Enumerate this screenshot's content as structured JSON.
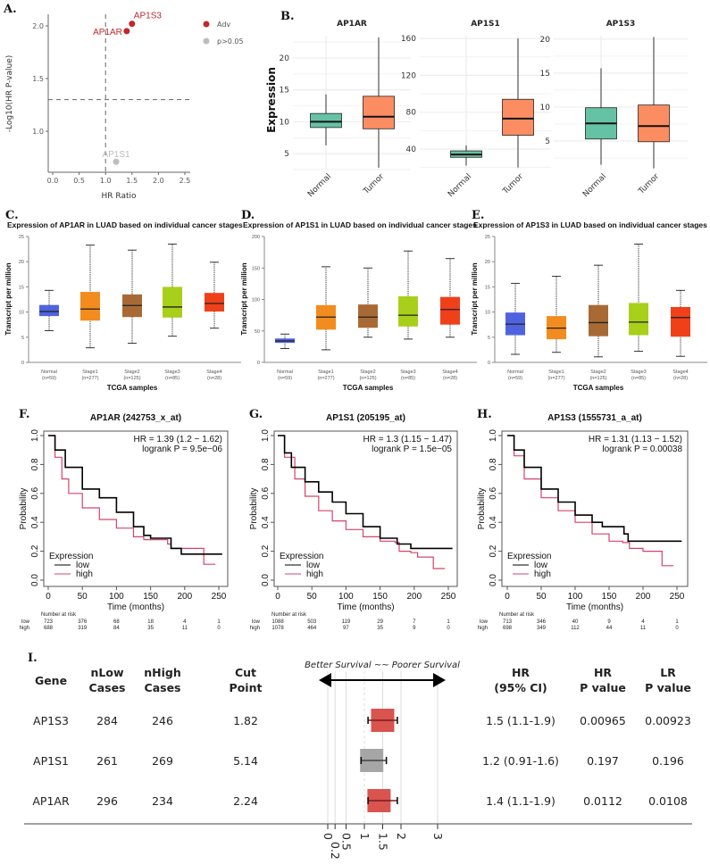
{
  "chart_data": [
    {
      "panel": "A.",
      "type": "scatter",
      "xlabel": "HR Ratio",
      "ylabel": "-Log10(HR P-value)",
      "x_ticks": [
        "0.0",
        "0.5",
        "1.0",
        "1.5",
        "2.0",
        "2.5"
      ],
      "y_ticks": [
        "1.0",
        "1.5",
        "2.0"
      ],
      "xlim": [
        -0.1,
        2.6
      ],
      "ylim": [
        0.6,
        2.1
      ],
      "thresholds": {
        "x": 1.0,
        "y": 1.3
      },
      "legend_position": "right",
      "legend": [
        {
          "label": "Adv",
          "color": "#c0282a"
        },
        {
          "label": "p>0.05",
          "color": "#bdbdbd"
        }
      ],
      "points": [
        {
          "gene": "AP1S3",
          "x": 1.5,
          "y": 2.02,
          "group": 0
        },
        {
          "gene": "AP1AR",
          "x": 1.4,
          "y": 1.95,
          "group": 0
        },
        {
          "gene": "AP1S1",
          "x": 1.2,
          "y": 0.71,
          "group": 1
        }
      ]
    },
    {
      "panel": "B.",
      "type": "box",
      "title": "AP1AR",
      "ylabel": "Expression",
      "categories": [
        "Normal",
        "Tumor"
      ],
      "colors": [
        "#66c2a5",
        "#fc8d62"
      ],
      "ylim": [
        2.5,
        23.5
      ],
      "y_ticks": [
        "5",
        "10",
        "15",
        "20"
      ],
      "boxes": [
        [
          6.3,
          9.1,
          10,
          11.3,
          14.3
        ],
        [
          2.8,
          8.9,
          10.8,
          14,
          23.2
        ]
      ]
    },
    {
      "type": "box",
      "title": "AP1S1",
      "categories": [
        "Normal",
        "Tumor"
      ],
      "colors": [
        "#66c2a5",
        "#fc8d62"
      ],
      "ylim": [
        17.7,
        163
      ],
      "y_ticks": [
        "40",
        "80",
        "120",
        "160"
      ],
      "boxes": [
        [
          22,
          31,
          34,
          38,
          44
        ],
        [
          20,
          55,
          73,
          94,
          160
        ]
      ]
    },
    {
      "type": "box",
      "title": "AP1S3",
      "categories": [
        "Normal",
        "Tumor"
      ],
      "colors": [
        "#66c2a5",
        "#fc8d62"
      ],
      "ylim": [
        0.8,
        20.5
      ],
      "y_ticks": [
        "5",
        "10",
        "15",
        "20"
      ],
      "boxes": [
        [
          1.5,
          5.3,
          7.6,
          9.9,
          15.7
        ],
        [
          1,
          4.9,
          7.2,
          10.3,
          20.3
        ]
      ]
    },
    {
      "panel": "C.",
      "type": "box",
      "title": "Expression of AP1AR in LUAD based on individual cancer stages",
      "xlabel": "TCGA samples",
      "ylabel": "Transcript per million",
      "categories": [
        "Normal",
        "Stage1",
        "Stage2",
        "Stage3",
        "Stage4"
      ],
      "n": [
        "(n=59)",
        "(n=277)",
        "(n=125)",
        "(n=85)",
        "(n=28)"
      ],
      "colors": [
        "#4f63e0",
        "#f28c1e",
        "#a86a35",
        "#a8d01a",
        "#f0401a"
      ],
      "ylim": [
        0,
        25
      ],
      "y_ticks": [
        "0",
        "5",
        "10",
        "15",
        "20",
        "25"
      ],
      "boxes": [
        [
          6.3,
          9.2,
          10.1,
          11.4,
          14.3
        ],
        [
          2.9,
          8.3,
          10.6,
          14.0,
          23.3
        ],
        [
          3.8,
          9.0,
          11.3,
          13.5,
          22.3
        ],
        [
          5.2,
          8.9,
          11.0,
          15.0,
          23.5
        ],
        [
          6.8,
          10.1,
          11.7,
          13.8,
          19.9
        ]
      ]
    },
    {
      "panel": "D.",
      "type": "box",
      "title": "Expression of AP1S1 in LUAD based on individual cancer stages",
      "xlabel": "TCGA samples",
      "ylabel": "Transcript per million",
      "categories": [
        "Normal",
        "Stage1",
        "Stage2",
        "Stage3",
        "Stage4"
      ],
      "n": [
        "(n=59)",
        "(n=277)",
        "(n=125)",
        "(n=85)",
        "(n=28)"
      ],
      "colors": [
        "#4f63e0",
        "#f28c1e",
        "#a86a35",
        "#a8d01a",
        "#f0401a"
      ],
      "ylim": [
        0,
        200
      ],
      "y_ticks": [
        "0",
        "50",
        "100",
        "150",
        "200"
      ],
      "boxes": [
        [
          22,
          31,
          34,
          38,
          45
        ],
        [
          20,
          52,
          72,
          91,
          152
        ],
        [
          40,
          55,
          72,
          92,
          150
        ],
        [
          37,
          57,
          75,
          105,
          177
        ],
        [
          40,
          60,
          84,
          104,
          165
        ]
      ]
    },
    {
      "panel": "E.",
      "type": "box",
      "title": "Expression of AP1S3 in LUAD based on individual cancer stages",
      "xlabel": "TCGA samples",
      "ylabel": "Transcript per million",
      "categories": [
        "Normal",
        "Stage1",
        "Stage2",
        "Stage3",
        "Stage4"
      ],
      "n": [
        "(n=59)",
        "(n=277)",
        "(n=125)",
        "(n=85)",
        "(n=28)"
      ],
      "colors": [
        "#4f63e0",
        "#f28c1e",
        "#a86a35",
        "#a8d01a",
        "#f0401a"
      ],
      "ylim": [
        0,
        25
      ],
      "y_ticks": [
        "0",
        "5",
        "10",
        "15",
        "20",
        "25"
      ],
      "boxes": [
        [
          1.6,
          5.4,
          7.6,
          9.9,
          15.7
        ],
        [
          2.0,
          4.6,
          6.8,
          9.2,
          17.1
        ],
        [
          1.1,
          5.2,
          7.9,
          11.4,
          19.3
        ],
        [
          2.2,
          5.4,
          8.0,
          11.8,
          23.5
        ],
        [
          1.2,
          5.1,
          8.9,
          11.0,
          14.3
        ]
      ]
    },
    {
      "panel": "F.",
      "type": "line",
      "title": "AP1AR (242753_x_at)",
      "xlabel": "Time (months)",
      "ylabel": "Probability",
      "x_ticks": [
        "0",
        "50",
        "100",
        "150",
        "200",
        "250"
      ],
      "y_ticks": [
        "0.0",
        "0.2",
        "0.4",
        "0.6",
        "0.8",
        "1.0"
      ],
      "hr_text": "HR = 1.39 (1.2 − 1.62)",
      "logrank_text": "logrank P = 9.5e−06",
      "legend_title": "Expression",
      "series": [
        {
          "name": "low",
          "color": "#000000",
          "points": [
            [
              0,
              1
            ],
            [
              10,
              0.9
            ],
            [
              25,
              0.78
            ],
            [
              50,
              0.63
            ],
            [
              75,
              0.57
            ],
            [
              100,
              0.47
            ],
            [
              125,
              0.37
            ],
            [
              140,
              0.31
            ],
            [
              150,
              0.29
            ],
            [
              172,
              0.29
            ],
            [
              180,
              0.22
            ],
            [
              195,
              0.18
            ],
            [
              255,
              0.18
            ]
          ]
        },
        {
          "name": "high",
          "color": "#d6436b",
          "points": [
            [
              0,
              1
            ],
            [
              10,
              0.85
            ],
            [
              20,
              0.7
            ],
            [
              30,
              0.6
            ],
            [
              50,
              0.5
            ],
            [
              75,
              0.42
            ],
            [
              100,
              0.36
            ],
            [
              125,
              0.3
            ],
            [
              140,
              0.28
            ],
            [
              160,
              0.28
            ],
            [
              175,
              0.25
            ],
            [
              180,
              0.22
            ],
            [
              228,
              0.22
            ],
            [
              228,
              0.11
            ],
            [
              245,
              0.11
            ]
          ]
        }
      ],
      "risk": {
        "title": "Number at risk",
        "labels": [
          "low",
          "high"
        ],
        "low": [
          "723",
          "376",
          "68",
          "18",
          "4",
          "1"
        ],
        "high": [
          "688",
          "319",
          "84",
          "35",
          "11",
          "0"
        ]
      }
    },
    {
      "panel": "G.",
      "type": "line",
      "title": "AP1S1 (205195_at)",
      "xlabel": "Time (months)",
      "ylabel": "Probability",
      "x_ticks": [
        "0",
        "50",
        "100",
        "150",
        "200",
        "250"
      ],
      "y_ticks": [
        "0.0",
        "0.2",
        "0.4",
        "0.6",
        "0.8",
        "1.0"
      ],
      "hr_text": "HR = 1.3 (1.15 − 1.47)",
      "logrank_text": "logrank P = 1.5e−05",
      "legend_title": "Expression",
      "series": [
        {
          "name": "low",
          "color": "#000000",
          "points": [
            [
              0,
              1
            ],
            [
              10,
              0.88
            ],
            [
              20,
              0.78
            ],
            [
              40,
              0.68
            ],
            [
              60,
              0.61
            ],
            [
              80,
              0.54
            ],
            [
              100,
              0.46
            ],
            [
              125,
              0.37
            ],
            [
              150,
              0.29
            ],
            [
              175,
              0.27
            ],
            [
              175,
              0.25
            ],
            [
              195,
              0.25
            ],
            [
              195,
              0.22
            ],
            [
              256,
              0.22
            ]
          ]
        },
        {
          "name": "high",
          "color": "#d6436b",
          "points": [
            [
              0,
              1
            ],
            [
              10,
              0.85
            ],
            [
              25,
              0.7
            ],
            [
              40,
              0.58
            ],
            [
              60,
              0.48
            ],
            [
              80,
              0.41
            ],
            [
              100,
              0.35
            ],
            [
              125,
              0.3
            ],
            [
              150,
              0.27
            ],
            [
              172,
              0.26
            ],
            [
              178,
              0.2
            ],
            [
              195,
              0.19
            ],
            [
              205,
              0.16
            ],
            [
              228,
              0.16
            ],
            [
              228,
              0.08
            ],
            [
              245,
              0.08
            ]
          ]
        }
      ],
      "risk": {
        "title": "Number at risk",
        "labels": [
          "low",
          "high"
        ],
        "low": [
          "1088",
          "503",
          "119",
          "29",
          "7",
          "1"
        ],
        "high": [
          "1078",
          "464",
          "97",
          "35",
          "9",
          "0"
        ]
      }
    },
    {
      "panel": "H.",
      "type": "line",
      "title": "AP1S3 (1555731_a_at)",
      "xlabel": "Time (months)",
      "ylabel": "Probability",
      "x_ticks": [
        "0",
        "50",
        "100",
        "150",
        "200",
        "250"
      ],
      "y_ticks": [
        "0.0",
        "0.2",
        "0.4",
        "0.6",
        "0.8",
        "1.0"
      ],
      "hr_text": "HR = 1.31 (1.13 − 1.52)",
      "logrank_text": "logrank P = 0.00038",
      "legend_title": "Expression",
      "series": [
        {
          "name": "low",
          "color": "#000000",
          "points": [
            [
              0,
              1
            ],
            [
              10,
              0.9
            ],
            [
              25,
              0.78
            ],
            [
              50,
              0.63
            ],
            [
              75,
              0.54
            ],
            [
              100,
              0.45
            ],
            [
              125,
              0.4
            ],
            [
              140,
              0.37
            ],
            [
              172,
              0.37
            ],
            [
              172,
              0.32
            ],
            [
              178,
              0.32
            ],
            [
              178,
              0.27
            ],
            [
              257,
              0.27
            ]
          ]
        },
        {
          "name": "high",
          "color": "#d6436b",
          "points": [
            [
              0,
              1
            ],
            [
              10,
              0.86
            ],
            [
              25,
              0.7
            ],
            [
              50,
              0.57
            ],
            [
              75,
              0.48
            ],
            [
              100,
              0.4
            ],
            [
              125,
              0.32
            ],
            [
              150,
              0.27
            ],
            [
              170,
              0.26
            ],
            [
              180,
              0.22
            ],
            [
              200,
              0.2
            ],
            [
              225,
              0.2
            ],
            [
              228,
              0.1
            ],
            [
              245,
              0.1
            ]
          ]
        }
      ],
      "risk": {
        "title": "Number at risk",
        "labels": [
          "low",
          "high"
        ],
        "low": [
          "713",
          "346",
          "40",
          "9",
          "4",
          "1"
        ],
        "high": [
          "698",
          "349",
          "112",
          "44",
          "11",
          "0"
        ]
      }
    },
    {
      "panel": "I.",
      "type": "table",
      "columns": [
        [
          "Gene"
        ],
        [
          "nLow",
          "Cases"
        ],
        [
          "nHigh",
          "Cases"
        ],
        [
          "Cut",
          "Point"
        ],
        [
          "HR",
          "(95% CI)"
        ],
        [
          "HR",
          "P value"
        ],
        [
          "LR",
          "P value"
        ]
      ],
      "forest": {
        "annotation": "Better Survival ~~ Poorer Survival",
        "ticks": [
          "0",
          "0.2",
          "0.5",
          "1",
          "1.5",
          "2",
          "3"
        ],
        "reference": 1,
        "colors": {
          "significant": "#d9534f",
          "ns": "#a6a6a6"
        }
      },
      "rows": [
        {
          "gene": "AP1S3",
          "nlow": "284",
          "nhigh": "246",
          "cut": "1.82",
          "hr": 1.5,
          "ci": [
            1.1,
            1.9
          ],
          "hr_ci": "1.5 (1.1-1.9)",
          "hr_p": "0.00965",
          "lr_p": "0.00923",
          "significant": true
        },
        {
          "gene": "AP1S1",
          "nlow": "261",
          "nhigh": "269",
          "cut": "5.14",
          "hr": 1.2,
          "ci": [
            0.91,
            1.6
          ],
          "hr_ci": "1.2 (0.91-1.6)",
          "hr_p": "0.197",
          "lr_p": "0.196",
          "significant": false
        },
        {
          "gene": "AP1AR",
          "nlow": "296",
          "nhigh": "234",
          "cut": "2.24",
          "hr": 1.4,
          "ci": [
            1.1,
            1.9
          ],
          "hr_ci": "1.4 (1.1-1.9)",
          "hr_p": "0.0112",
          "lr_p": "0.0108",
          "significant": true
        }
      ]
    }
  ]
}
